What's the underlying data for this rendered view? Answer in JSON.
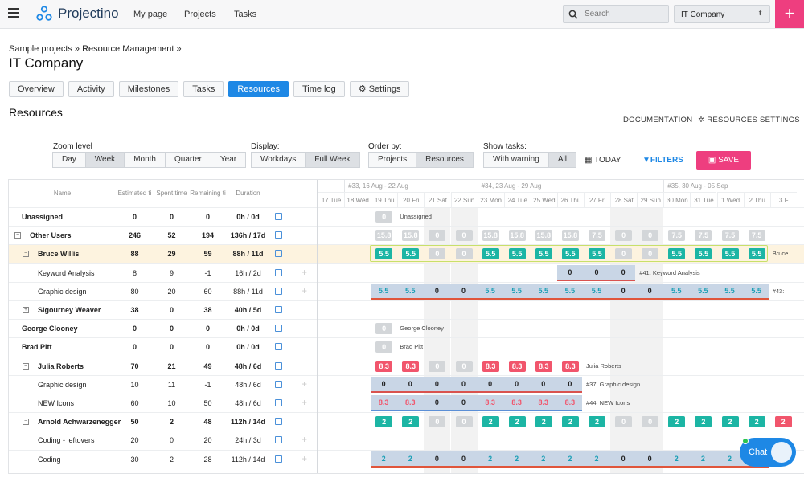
{
  "nav": {
    "app_name": "Projectino",
    "links": [
      "My page",
      "Projects",
      "Tasks"
    ],
    "search_placeholder": "Search",
    "company": "IT Company"
  },
  "breadcrumb": "Sample projects » Resource Management »",
  "page_title": "IT Company",
  "tabs": [
    {
      "label": "Overview"
    },
    {
      "label": "Activity"
    },
    {
      "label": "Milestones"
    },
    {
      "label": "Tasks"
    },
    {
      "label": "Resources",
      "active": true
    },
    {
      "label": "Time log"
    },
    {
      "label": "Settings"
    }
  ],
  "section_title": "Resources",
  "actions": {
    "documentation": "DOCUMENTATION",
    "resources_settings": "RESOURCES SETTINGS",
    "today": "TODAY",
    "filters": "FILTERS",
    "save": "SAVE"
  },
  "controls": {
    "zoom_label": "Zoom level",
    "zoom": [
      "Day",
      "Week",
      "Month",
      "Quarter",
      "Year"
    ],
    "zoom_selected": "Week",
    "display_label": "Display:",
    "display": [
      "Workdays",
      "Full Week"
    ],
    "display_selected": "Full Week",
    "order_label": "Order by:",
    "order": [
      "Projects",
      "Resources"
    ],
    "order_selected": "Resources",
    "show_label": "Show tasks:",
    "show": [
      "With warning",
      "All"
    ],
    "show_selected": "All"
  },
  "columns": [
    "Name",
    "Estimated ti",
    "Spent time",
    "Remaining ti",
    "Duration"
  ],
  "weeks": [
    "#33, 16 Aug - 22 Aug",
    "#34, 23 Aug - 29 Aug",
    "#35, 30 Aug - 05 Sep"
  ],
  "days": [
    "17 Tue",
    "18 Wed",
    "19 Thu",
    "20 Fri",
    "21 Sat",
    "22 Sun",
    "23 Mon",
    "24 Tue",
    "25 Wed",
    "26 Thu",
    "27 Fri",
    "28 Sat",
    "29 Sun",
    "30 Mon",
    "31 Tue",
    "1 Wed",
    "2 Thu",
    "3 F"
  ],
  "rows": [
    {
      "name": "Unassigned",
      "level": 0,
      "bold": true,
      "est": "0",
      "spent": "0",
      "rem": "0",
      "dur": "0h / 0d",
      "link": true
    },
    {
      "name": "Other Users",
      "level": 0,
      "bold": true,
      "toggle": "−",
      "est": "246",
      "spent": "52",
      "rem": "194",
      "dur": "136h / 17d",
      "link": true
    },
    {
      "name": "Bruce Willis",
      "level": 1,
      "bold": true,
      "toggle": "−",
      "est": "88",
      "spent": "29",
      "rem": "59",
      "dur": "88h / 11d",
      "link": true,
      "highlight": true
    },
    {
      "name": "Keyword Analysis",
      "level": 2,
      "est": "8",
      "spent": "9",
      "rem": "-1",
      "dur": "16h / 2d",
      "link": true,
      "plus": true
    },
    {
      "name": "Graphic design",
      "level": 2,
      "est": "80",
      "spent": "20",
      "rem": "60",
      "dur": "88h / 11d",
      "link": true,
      "plus": true
    },
    {
      "name": "Sigourney Weaver",
      "level": 1,
      "bold": true,
      "toggle": "+",
      "est": "38",
      "spent": "0",
      "rem": "38",
      "dur": "40h / 5d",
      "link": true
    },
    {
      "name": "George Clooney",
      "level": 0,
      "bold": true,
      "est": "0",
      "spent": "0",
      "rem": "0",
      "dur": "0h / 0d",
      "link": true
    },
    {
      "name": "Brad Pitt",
      "level": 0,
      "bold": true,
      "est": "0",
      "spent": "0",
      "rem": "0",
      "dur": "0h / 0d",
      "link": true
    },
    {
      "name": "Julia Roberts",
      "level": 1,
      "bold": true,
      "toggle": "−",
      "est": "70",
      "spent": "21",
      "rem": "49",
      "dur": "48h / 6d",
      "link": true
    },
    {
      "name": "Graphic design",
      "level": 2,
      "est": "10",
      "spent": "11",
      "rem": "-1",
      "dur": "48h / 6d",
      "link": true,
      "plus": true
    },
    {
      "name": "NEW Icons",
      "level": 2,
      "est": "60",
      "spent": "10",
      "rem": "50",
      "dur": "48h / 6d",
      "link": true,
      "plus": true
    },
    {
      "name": "Arnold Achwarzenegger",
      "level": 1,
      "bold": true,
      "toggle": "−",
      "est": "50",
      "spent": "2",
      "rem": "48",
      "dur": "112h / 14d",
      "link": true
    },
    {
      "name": "Coding - leftovers",
      "level": 2,
      "est": "20",
      "spent": "0",
      "rem": "20",
      "dur": "24h / 3d",
      "link": true,
      "plus": true
    },
    {
      "name": "Coding",
      "level": 2,
      "est": "30",
      "spent": "2",
      "rem": "28",
      "dur": "112h / 14d",
      "link": true,
      "plus": true
    }
  ],
  "cal_rows": [
    {
      "cells": [
        {
          "d": 2,
          "t": "g",
          "v": "0"
        }
      ],
      "label": {
        "d": 3,
        "text": "Unassigned"
      }
    },
    {
      "cells": [
        {
          "d": 2,
          "t": "g",
          "v": "15.8"
        },
        {
          "d": 3,
          "t": "g",
          "v": "15.8"
        },
        {
          "d": 4,
          "t": "g",
          "v": "0"
        },
        {
          "d": 5,
          "t": "g",
          "v": "0"
        },
        {
          "d": 6,
          "t": "g",
          "v": "15.8"
        },
        {
          "d": 7,
          "t": "g",
          "v": "15.8"
        },
        {
          "d": 8,
          "t": "g",
          "v": "15.8"
        },
        {
          "d": 9,
          "t": "g",
          "v": "15.8"
        },
        {
          "d": 10,
          "t": "g",
          "v": "7.5"
        },
        {
          "d": 11,
          "t": "g",
          "v": "0"
        },
        {
          "d": 12,
          "t": "g",
          "v": "0"
        },
        {
          "d": 13,
          "t": "g",
          "v": "7.5"
        },
        {
          "d": 14,
          "t": "g",
          "v": "7.5"
        },
        {
          "d": 15,
          "t": "g",
          "v": "7.5"
        },
        {
          "d": 16,
          "t": "g",
          "v": "7.5"
        }
      ]
    },
    {
      "cells": [
        {
          "d": 2,
          "t": "t",
          "v": "5.5"
        },
        {
          "d": 3,
          "t": "t",
          "v": "5.5"
        },
        {
          "d": 4,
          "t": "g",
          "v": "0"
        },
        {
          "d": 5,
          "t": "g",
          "v": "0"
        },
        {
          "d": 6,
          "t": "t",
          "v": "5.5"
        },
        {
          "d": 7,
          "t": "t",
          "v": "5.5"
        },
        {
          "d": 8,
          "t": "t",
          "v": "5.5"
        },
        {
          "d": 9,
          "t": "t",
          "v": "5.5"
        },
        {
          "d": 10,
          "t": "t",
          "v": "5.5"
        },
        {
          "d": 11,
          "t": "g",
          "v": "0"
        },
        {
          "d": 12,
          "t": "g",
          "v": "0"
        },
        {
          "d": 13,
          "t": "t",
          "v": "5.5"
        },
        {
          "d": 14,
          "t": "t",
          "v": "5.5"
        },
        {
          "d": 15,
          "t": "t",
          "v": "5.5"
        },
        {
          "d": 16,
          "t": "t",
          "v": "5.5"
        }
      ],
      "label": {
        "d": 17,
        "text": "Bruce"
      }
    },
    {
      "bar": {
        "from": 9,
        "to": 12,
        "vals": [
          "0",
          "0",
          "0"
        ],
        "c": "#222"
      },
      "label": {
        "d": 12,
        "text": "#41: Keyword Analysis"
      }
    },
    {
      "bar": {
        "from": 2,
        "to": 17,
        "vals": [
          "5.5",
          "5.5",
          "0",
          "0",
          "5.5",
          "5.5",
          "5.5",
          "5.5",
          "5.5",
          "0",
          "0",
          "5.5",
          "5.5",
          "5.5",
          "5.5"
        ],
        "c": "#1a9fb5"
      },
      "label": {
        "d": 17,
        "text": "#43:"
      }
    },
    {},
    {
      "cells": [
        {
          "d": 2,
          "t": "g",
          "v": "0"
        }
      ],
      "label": {
        "d": 3,
        "text": "George Clooney"
      }
    },
    {
      "cells": [
        {
          "d": 2,
          "t": "g",
          "v": "0"
        }
      ],
      "label": {
        "d": 3,
        "text": "Brad Pitt"
      }
    },
    {
      "cells": [
        {
          "d": 2,
          "t": "r",
          "v": "8.3"
        },
        {
          "d": 3,
          "t": "r",
          "v": "8.3"
        },
        {
          "d": 4,
          "t": "g",
          "v": "0"
        },
        {
          "d": 5,
          "t": "g",
          "v": "0"
        },
        {
          "d": 6,
          "t": "r",
          "v": "8.3"
        },
        {
          "d": 7,
          "t": "r",
          "v": "8.3"
        },
        {
          "d": 8,
          "t": "r",
          "v": "8.3"
        },
        {
          "d": 9,
          "t": "r",
          "v": "8.3"
        }
      ],
      "label": {
        "d": 10,
        "text": "Julia Roberts"
      }
    },
    {
      "bar": {
        "from": 2,
        "to": 10,
        "vals": [
          "0",
          "0",
          "0",
          "0",
          "0",
          "0",
          "0",
          "0"
        ],
        "c": "#222"
      },
      "label": {
        "d": 10,
        "text": "#37: Graphic design"
      }
    },
    {
      "bar": {
        "from": 2,
        "to": 10,
        "vals": [
          "8.3",
          "8.3",
          "0",
          "0",
          "8.3",
          "8.3",
          "8.3",
          "8.3"
        ],
        "c": "#f1556c"
      },
      "label": {
        "d": 10,
        "text": "#44: NEW Icons"
      }
    },
    {
      "cells": [
        {
          "d": 2,
          "t": "t",
          "v": "2"
        },
        {
          "d": 3,
          "t": "t",
          "v": "2"
        },
        {
          "d": 4,
          "t": "g",
          "v": "0"
        },
        {
          "d": 5,
          "t": "g",
          "v": "0"
        },
        {
          "d": 6,
          "t": "t",
          "v": "2"
        },
        {
          "d": 7,
          "t": "t",
          "v": "2"
        },
        {
          "d": 8,
          "t": "t",
          "v": "2"
        },
        {
          "d": 9,
          "t": "t",
          "v": "2"
        },
        {
          "d": 10,
          "t": "t",
          "v": "2"
        },
        {
          "d": 11,
          "t": "g",
          "v": "0"
        },
        {
          "d": 12,
          "t": "g",
          "v": "0"
        },
        {
          "d": 13,
          "t": "t",
          "v": "2"
        },
        {
          "d": 14,
          "t": "t",
          "v": "2"
        },
        {
          "d": 15,
          "t": "t",
          "v": "2"
        },
        {
          "d": 16,
          "t": "t",
          "v": "2"
        },
        {
          "d": 17,
          "t": "r",
          "v": "2"
        }
      ]
    },
    {},
    {
      "bar": {
        "from": 2,
        "to": 17,
        "vals": [
          "2",
          "2",
          "0",
          "0",
          "2",
          "2",
          "2",
          "2",
          "2",
          "0",
          "0",
          "2",
          "2",
          "2",
          "2"
        ],
        "c": "#1a9fb5"
      }
    }
  ],
  "chat_label": "Chat"
}
